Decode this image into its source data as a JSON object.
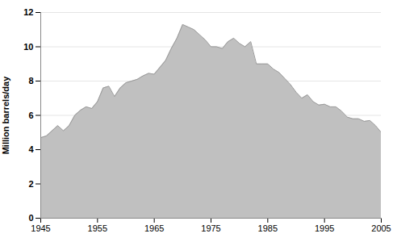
{
  "chart_data": {
    "type": "area",
    "ylabel": "Million barrels/day",
    "x": [
      1945,
      1946,
      1947,
      1948,
      1949,
      1950,
      1951,
      1952,
      1953,
      1954,
      1955,
      1956,
      1957,
      1958,
      1959,
      1960,
      1961,
      1962,
      1963,
      1964,
      1965,
      1966,
      1967,
      1968,
      1969,
      1970,
      1971,
      1972,
      1973,
      1974,
      1975,
      1976,
      1977,
      1978,
      1979,
      1980,
      1981,
      1982,
      1983,
      1984,
      1985,
      1986,
      1987,
      1988,
      1989,
      1990,
      1991,
      1992,
      1993,
      1994,
      1995,
      1996,
      1997,
      1998,
      1999,
      2000,
      2001,
      2002,
      2003,
      2004,
      2005
    ],
    "values": [
      4.7,
      4.8,
      5.1,
      5.4,
      5.1,
      5.4,
      6.0,
      6.3,
      6.5,
      6.4,
      6.8,
      7.6,
      7.7,
      7.1,
      7.6,
      7.9,
      8.0,
      8.1,
      8.3,
      8.45,
      8.4,
      8.8,
      9.2,
      9.9,
      10.5,
      11.3,
      11.15,
      11.0,
      10.7,
      10.4,
      10.0,
      10.0,
      9.9,
      10.3,
      10.5,
      10.2,
      10.0,
      10.3,
      9.0,
      9.0,
      9.0,
      8.7,
      8.5,
      8.15,
      7.8,
      7.35,
      7.0,
      7.2,
      6.8,
      6.6,
      6.65,
      6.5,
      6.5,
      6.25,
      5.9,
      5.8,
      5.8,
      5.65,
      5.7,
      5.4,
      5.0
    ],
    "color": "#c0c0c0",
    "xlim": [
      1945,
      2005
    ],
    "ylim": [
      0,
      12
    ],
    "xticks": [
      1945,
      1955,
      1965,
      1975,
      1985,
      1995,
      2005
    ],
    "yticks": [
      0,
      2,
      4,
      6,
      8,
      10,
      12
    ],
    "grid": true
  }
}
